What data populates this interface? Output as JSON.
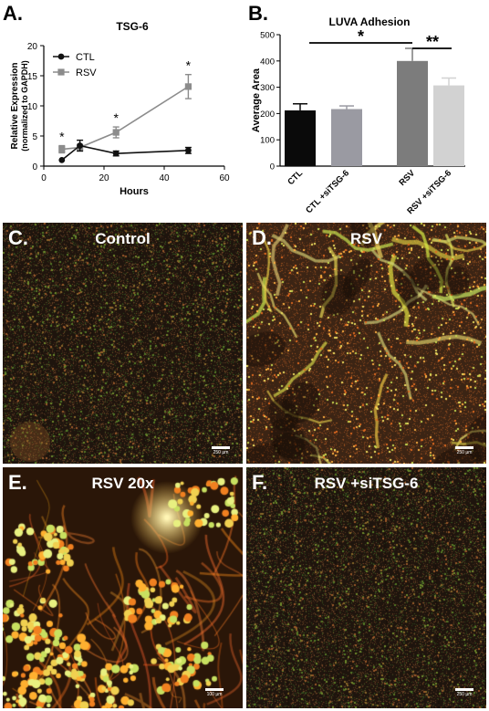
{
  "colors": {
    "ctl_line": "#111111",
    "rsv_line": "#8c8c8c",
    "bar_ctl": "#0a0a0a",
    "bar_ctl_si": "#9a9aa2",
    "bar_rsv": "#7c7c7c",
    "bar_rsv_si": "#d2d2d2"
  },
  "panel_a": {
    "letter": "A.",
    "significance_marks": [
      "*",
      "*",
      "*"
    ]
  },
  "panel_b": {
    "letter": "B.",
    "brackets": [
      {
        "label": "*",
        "from": "CTL",
        "to": "RSV"
      },
      {
        "label": "**",
        "from": "RSV",
        "to": "RSV +siTSG-6"
      }
    ]
  },
  "chart_data": [
    {
      "type": "line",
      "title": "TSG-6",
      "xlabel": "Hours",
      "ylabel": "Relative Expression (normalized to GAPDH)",
      "xlim": [
        0,
        60
      ],
      "ylim": [
        0,
        20
      ],
      "xticks": [
        0,
        20,
        40,
        60
      ],
      "yticks": [
        0,
        5,
        10,
        15,
        20
      ],
      "legend_position": "top-left",
      "series": [
        {
          "name": "CTL",
          "marker": "circle",
          "x": [
            6,
            12,
            24,
            48
          ],
          "y": [
            1.0,
            3.4,
            2.1,
            2.6
          ],
          "err": [
            0.0,
            0.9,
            0.4,
            0.5
          ]
        },
        {
          "name": "RSV",
          "marker": "square",
          "x": [
            6,
            12,
            24,
            48
          ],
          "y": [
            2.8,
            3.1,
            5.6,
            13.2
          ],
          "err": [
            0.6,
            0.5,
            0.9,
            2.0
          ]
        }
      ]
    },
    {
      "type": "bar",
      "title": "LUVA Adhesion",
      "ylabel": "Average Area",
      "ylim": [
        0,
        500
      ],
      "yticks": [
        0,
        100,
        200,
        300,
        400,
        500
      ],
      "categories": [
        "CTL",
        "CTL +siTSG-6",
        "RSV",
        "RSV +siTSG-6"
      ],
      "values": [
        212,
        217,
        400,
        307
      ],
      "errors": [
        25,
        12,
        48,
        28
      ]
    }
  ],
  "micrographs": [
    {
      "letter": "C.",
      "title": "Control",
      "scale": "250 µm",
      "variant": "control"
    },
    {
      "letter": "D.",
      "title": "RSV",
      "scale": "250 µm",
      "variant": "rsv"
    },
    {
      "letter": "E.",
      "title": "RSV 20x",
      "scale": "100 µm",
      "variant": "rsv20x"
    },
    {
      "letter": "F.",
      "title": "RSV +siTSG-6",
      "scale": "250 µm",
      "variant": "si"
    }
  ]
}
